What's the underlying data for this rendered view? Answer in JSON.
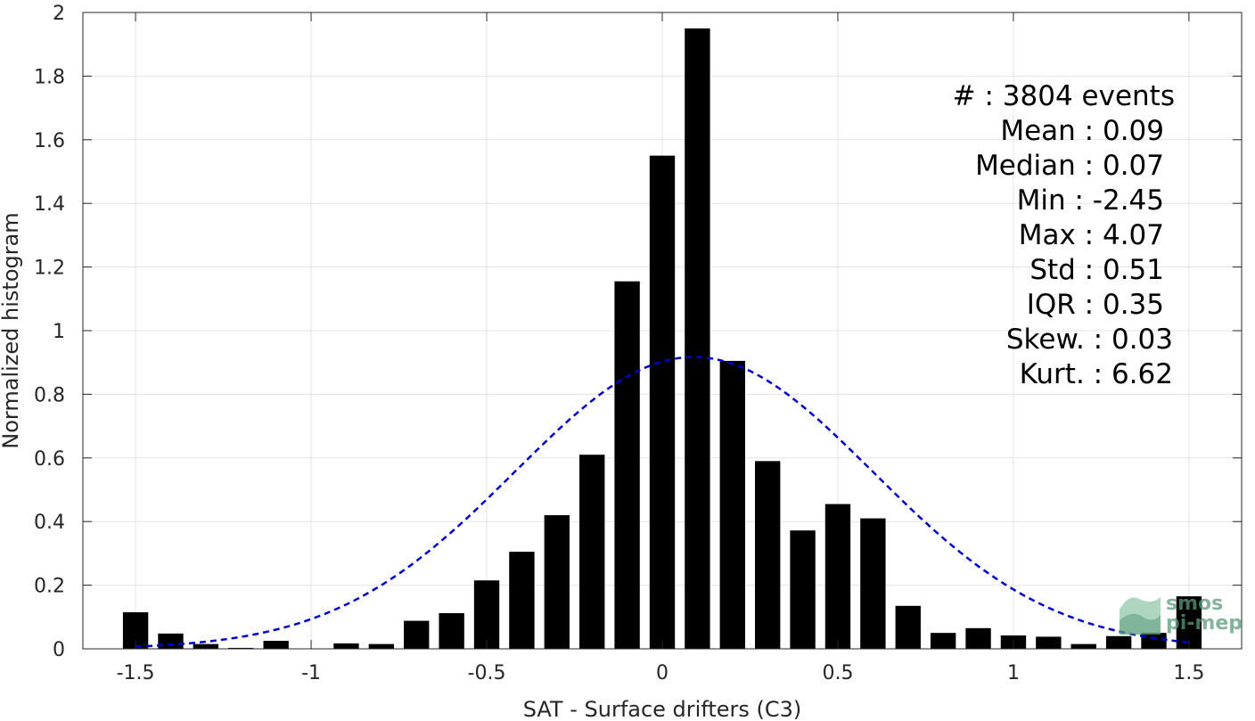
{
  "chart_data": {
    "type": "bar",
    "xlabel": "SAT - Surface drifters (C3)",
    "ylabel": "Normalized histogram",
    "xlim": [
      -1.65,
      1.65
    ],
    "ylim": [
      0,
      2
    ],
    "grid": true,
    "x_ticks": [
      "-1.5",
      "-1",
      "-0.5",
      "0",
      "0.5",
      "1",
      "1.5"
    ],
    "x_tick_values": [
      -1.5,
      -1,
      -0.5,
      0,
      0.5,
      1,
      1.5
    ],
    "y_ticks": [
      "0",
      "0.2",
      "0.4",
      "0.6",
      "0.8",
      "1",
      "1.2",
      "1.4",
      "1.6",
      "1.8",
      "2"
    ],
    "y_tick_values": [
      0,
      0.2,
      0.4,
      0.6,
      0.8,
      1,
      1.2,
      1.4,
      1.6,
      1.8,
      2
    ],
    "bar_color": "#000000",
    "x": [
      -1.5,
      -1.4,
      -1.3,
      -1.2,
      -1.1,
      -1.0,
      -0.9,
      -0.8,
      -0.7,
      -0.6,
      -0.5,
      -0.4,
      -0.3,
      -0.2,
      -0.1,
      0.0,
      0.1,
      0.2,
      0.3,
      0.4,
      0.5,
      0.6,
      0.7,
      0.8,
      0.9,
      1.0,
      1.1,
      1.2,
      1.3,
      1.4,
      1.5
    ],
    "values": [
      0.115,
      0.048,
      0.015,
      0.003,
      0.025,
      0.0,
      0.017,
      0.015,
      0.088,
      0.112,
      0.215,
      0.305,
      0.42,
      0.61,
      1.155,
      1.55,
      1.95,
      0.905,
      0.59,
      0.372,
      0.455,
      0.41,
      0.135,
      0.05,
      0.065,
      0.042,
      0.038,
      0.015,
      0.04,
      0.05,
      0.165
    ],
    "normal_fit": {
      "mean": 0.09,
      "std": 0.51,
      "scale": 0.917,
      "color": "#0000cc",
      "style": "dashed"
    },
    "stats": [
      {
        "label": "#  : 3804 events"
      },
      {
        "label": "Mean : 0.09"
      },
      {
        "label": "Median : 0.07"
      },
      {
        "label": "Min : -2.45"
      },
      {
        "label": "Max : 4.07"
      },
      {
        "label": "Std : 0.51"
      },
      {
        "label": "IQR : 0.35"
      },
      {
        "label": "Skew. : 0.03"
      },
      {
        "label": "Kurt. : 6.62"
      }
    ]
  },
  "logo": {
    "line1": "smos",
    "line2": "pi-mep"
  }
}
